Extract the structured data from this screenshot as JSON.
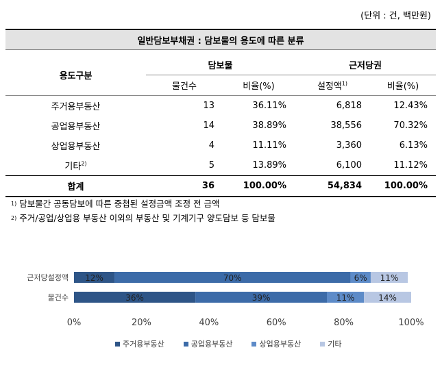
{
  "unit_note": "(단위 : 건, 백만원)",
  "table": {
    "title": "일반담보부채권 : 담보물의 용도에 따른 분류",
    "col_usage": "용도구분",
    "group_collateral": "담보물",
    "group_lien": "근저당권",
    "sub_count": "물건수",
    "sub_ratio1": "비율(%)",
    "sub_amount": "설정액",
    "sub_amount_sup": "1)",
    "sub_ratio2": "비율(%)",
    "rows": [
      {
        "label": "주거용부동산",
        "sup": "",
        "count": "13",
        "ratio1": "36.11%",
        "amount": "6,818",
        "ratio2": "12.43%"
      },
      {
        "label": "공업용부동산",
        "sup": "",
        "count": "14",
        "ratio1": "38.89%",
        "amount": "38,556",
        "ratio2": "70.32%"
      },
      {
        "label": "상업용부동산",
        "sup": "",
        "count": "4",
        "ratio1": "11.11%",
        "amount": "3,360",
        "ratio2": "6.13%"
      },
      {
        "label": "기타",
        "sup": "2)",
        "count": "5",
        "ratio1": "13.89%",
        "amount": "6,100",
        "ratio2": "11.12%"
      }
    ],
    "total": {
      "label": "합계",
      "count": "36",
      "ratio1": "100.00%",
      "amount": "54,834",
      "ratio2": "100.00%"
    }
  },
  "notes": [
    {
      "sup": "1)",
      "text": "담보물간 공동담보에 따른 중첩된 설정금액 조정 전 금액"
    },
    {
      "sup": "2)",
      "text": "주거/공업/상업용 부동산 이외의 부동산 및 기계기구 양도담보 등 담보물"
    }
  ],
  "chart_data": {
    "type": "bar",
    "orientation": "horizontal",
    "stacked": true,
    "categories": [
      "근저당설정액",
      "물건수"
    ],
    "series": [
      {
        "name": "주거용부동산",
        "values": [
          12,
          36
        ],
        "labels": [
          "12%",
          "36%"
        ],
        "color": "#2e5587"
      },
      {
        "name": "공업용부동산",
        "values": [
          70,
          39
        ],
        "labels": [
          "70%",
          "39%"
        ],
        "color": "#3c6ba8"
      },
      {
        "name": "상업용부동산",
        "values": [
          6,
          11
        ],
        "labels": [
          "6%",
          "11%"
        ],
        "color": "#5d8bc8"
      },
      {
        "name": "기타",
        "values": [
          11,
          14
        ],
        "labels": [
          "11%",
          "14%"
        ],
        "color": "#b8c7e3"
      }
    ],
    "xlim": [
      0,
      100
    ],
    "xticks": [
      "0%",
      "20%",
      "40%",
      "60%",
      "80%",
      "100%"
    ],
    "grid": false,
    "legend": "bottom"
  }
}
